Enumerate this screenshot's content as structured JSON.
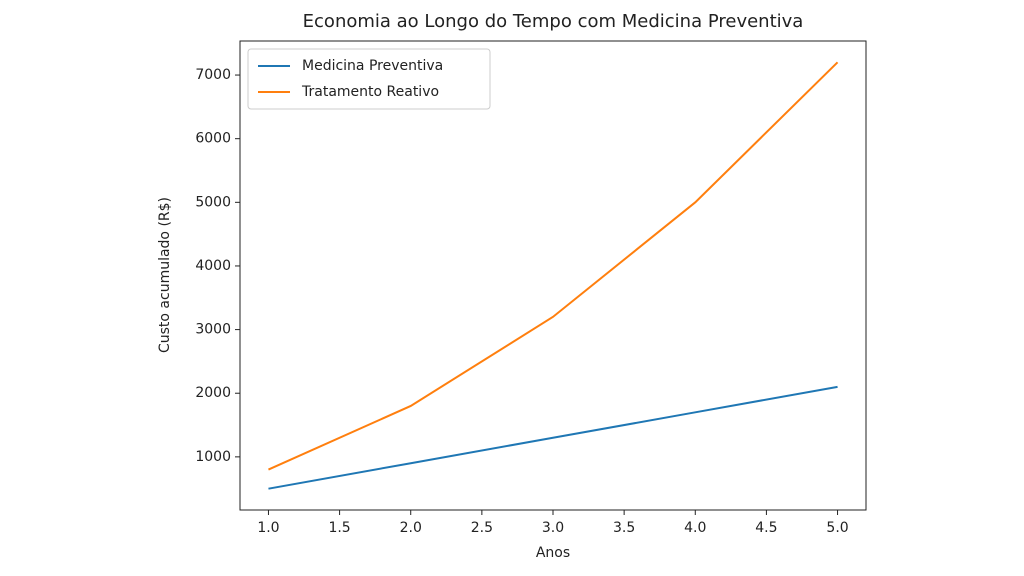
{
  "chart_data": {
    "type": "line",
    "title": "Economia ao Longo do Tempo com Medicina Preventiva",
    "x_label": "Anos",
    "y_label": "Custo acumulado (R$)",
    "x": [
      1,
      2,
      3,
      4,
      5
    ],
    "series": [
      {
        "name": "Medicina Preventiva",
        "color": "#1f77b4",
        "values": [
          500,
          900,
          1300,
          1700,
          2100
        ]
      },
      {
        "name": "Tratamento Reativo",
        "color": "#ff7f0e",
        "values": [
          800,
          1800,
          3200,
          5000,
          7200
        ]
      }
    ],
    "xlim": [
      0.8,
      5.2
    ],
    "ylim": [
      165,
      7535
    ],
    "xticks": [
      {
        "value": 1,
        "label": "1.0"
      },
      {
        "value": 1.5,
        "label": "1.5"
      },
      {
        "value": 2,
        "label": "2.0"
      },
      {
        "value": 2.5,
        "label": "2.5"
      },
      {
        "value": 3,
        "label": "3.0"
      },
      {
        "value": 3.5,
        "label": "3.5"
      },
      {
        "value": 4,
        "label": "4.0"
      },
      {
        "value": 4.5,
        "label": "4.5"
      },
      {
        "value": 5,
        "label": "5.0"
      }
    ],
    "yticks": [
      1000,
      2000,
      3000,
      4000,
      5000,
      6000,
      7000
    ],
    "grid": false,
    "legend": "upper-left"
  }
}
